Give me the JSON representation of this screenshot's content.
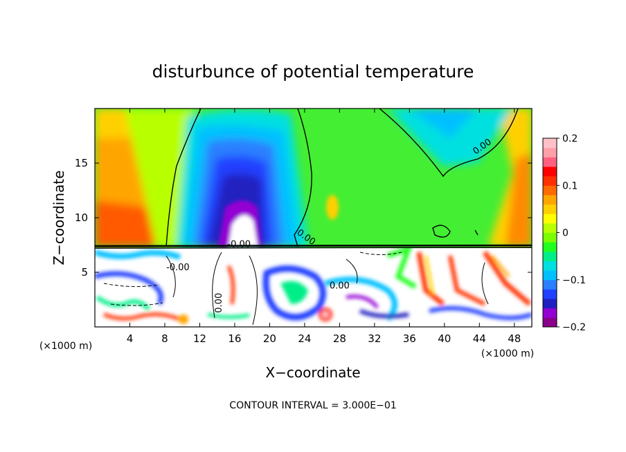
{
  "chart_data": {
    "type": "heatmap",
    "title": "disturbunce of potential temperature",
    "xlabel": "X−coordinate",
    "ylabel": "Z−coordinate",
    "x_unit_left": "(×1000 m)",
    "x_unit_right": "(×1000 m)",
    "xlim": [
      0,
      50
    ],
    "ylim": [
      0,
      20
    ],
    "x_ticks": [
      "4",
      "8",
      "12",
      "16",
      "20",
      "24",
      "28",
      "32",
      "36",
      "40",
      "44",
      "48"
    ],
    "x_tick_values": [
      4,
      8,
      12,
      16,
      20,
      24,
      28,
      32,
      36,
      40,
      44,
      48
    ],
    "y_ticks": [
      "5",
      "10",
      "15"
    ],
    "y_tick_values": [
      5,
      10,
      15
    ],
    "colorbar": {
      "min": -0.2,
      "max": 0.2,
      "tick_labels": [
        "0.2",
        "0.1",
        "0",
        "−0.1",
        "−0.2"
      ],
      "tick_values": [
        0.2,
        0.1,
        0,
        -0.1,
        -0.2
      ],
      "colors": [
        "#8b008b",
        "#9400d3",
        "#2020c0",
        "#2040ff",
        "#2a7fff",
        "#00c0ff",
        "#00e0e0",
        "#00ee88",
        "#20ff20",
        "#7cfc00",
        "#b8ff00",
        "#ffff00",
        "#ffd000",
        "#ffa500",
        "#ff6a00",
        "#ff3000",
        "#ff0000",
        "#ff6080",
        "#ff9fa8",
        "#ffc0c8"
      ]
    },
    "contour_labels": [
      {
        "text": "0.00",
        "x": 44.5,
        "y": 16.3,
        "rot": -35
      },
      {
        "text": "0.00",
        "x": 24.0,
        "y": 8.0,
        "rot": 35
      },
      {
        "text": "-0.00",
        "x": 16.5,
        "y": 7.3,
        "rot": 0
      },
      {
        "text": "-0.00",
        "x": 9.5,
        "y": 5.2,
        "rot": 0
      },
      {
        "text": "0.00",
        "x": 28.0,
        "y": 3.5,
        "rot": 0
      },
      {
        "text": "0.00",
        "x": 14.5,
        "y": 2.2,
        "rot": -90
      }
    ],
    "contour_interval_text": "CONTOUR INTERVAL = 3.000E−01"
  }
}
